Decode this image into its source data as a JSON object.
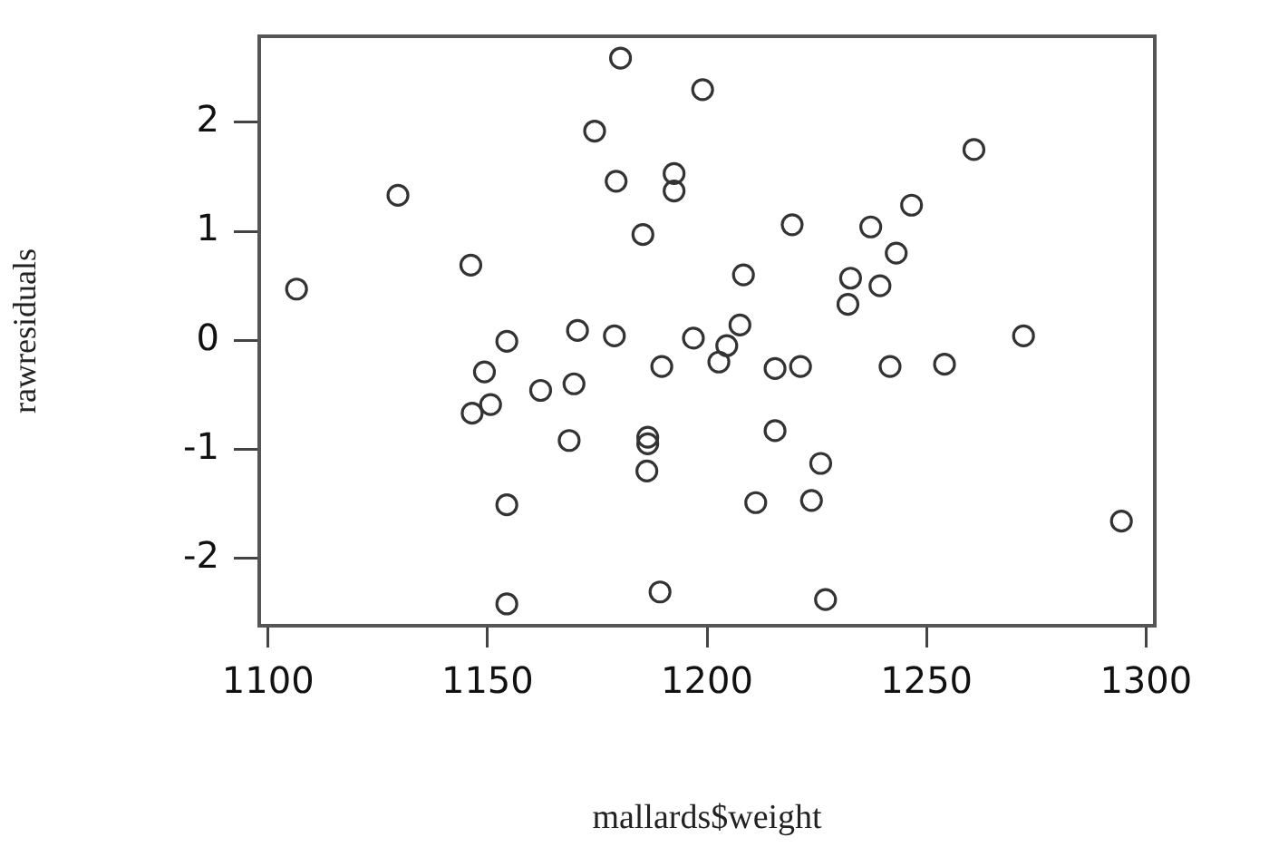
{
  "chart_data": {
    "type": "scatter",
    "xlabel": "mallards$weight",
    "ylabel": "rawresiduals",
    "marker": "circle",
    "grid": false,
    "legend": false,
    "xlim": [
      1098,
      1302
    ],
    "xticks": [
      1100,
      1150,
      1200,
      1250,
      1300
    ],
    "ylim": [
      -2.62,
      2.79
    ],
    "yticks": [
      -2,
      -1,
      0,
      1,
      2
    ],
    "series": [
      {
        "color": "#333333",
        "x": [
          1180.3,
          1199,
          1174.4,
          1129.6,
          1179.3,
          1192.5,
          1192.5,
          1185.4,
          1146.2,
          1106.5,
          1154.4,
          1170.5,
          1178.9,
          1196.9,
          1149.3,
          1150.7,
          1146.5,
          1162.1,
          1169.7,
          1189.7,
          1168.6,
          1186.5,
          1186.5,
          1186.3,
          1154.4,
          1189.3,
          1154.4,
          1260.8,
          1246.6,
          1219.4,
          1237.3,
          1243.1,
          1208.3,
          1232.7,
          1239.4,
          1232.1,
          1207.5,
          1204.5,
          1202.7,
          1215.5,
          1221.3,
          1241.7,
          1254.1,
          1272.1,
          1215.5,
          1225.9,
          1211.1,
          1223.8,
          1294.4,
          1227
        ],
        "values": [
          2.59,
          2.3,
          1.92,
          1.33,
          1.46,
          1.53,
          1.37,
          0.97,
          0.69,
          0.47,
          -0.01,
          0.09,
          0.04,
          0.02,
          -0.29,
          -0.59,
          -0.67,
          -0.46,
          -0.4,
          -0.24,
          -0.92,
          -0.89,
          -0.95,
          -1.2,
          -1.51,
          -2.31,
          -2.42,
          1.75,
          1.24,
          1.06,
          1.04,
          0.8,
          0.6,
          0.57,
          0.5,
          0.33,
          0.14,
          -0.05,
          -0.2,
          -0.26,
          -0.24,
          -0.24,
          -0.22,
          0.04,
          -0.83,
          -1.13,
          -1.49,
          -1.47,
          -1.66,
          -2.38
        ]
      }
    ]
  }
}
